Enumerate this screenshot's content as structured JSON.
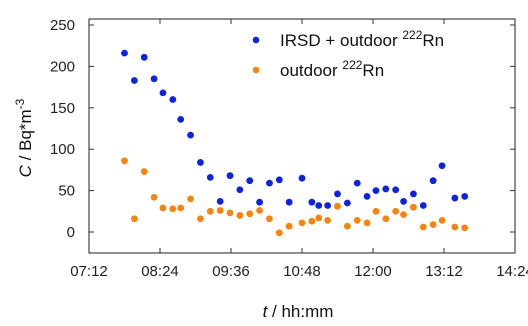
{
  "chart_data": {
    "type": "scatter",
    "xlabel": {
      "var": "t",
      "unit": " / hh:mm"
    },
    "ylabel": {
      "var": "C",
      "unit": " / Bq*m",
      "sup": "-3"
    },
    "x_ticks": [
      "07:12",
      "08:24",
      "09:36",
      "10:48",
      "12:00",
      "13:12",
      "14:24"
    ],
    "xlim": [
      "07:12",
      "14:24"
    ],
    "ylim": [
      0,
      250
    ],
    "y_ticks": [
      "0",
      "50",
      "100",
      "150",
      "200",
      "250"
    ],
    "grid": false,
    "legend_position": "top-right",
    "series": [
      {
        "legend": {
          "pre": "IRSD + outdoor ",
          "sup": "222",
          "post": "Rn"
        },
        "color": "#0d23e0",
        "points": [
          [
            "07:48",
            216
          ],
          [
            "07:58",
            183
          ],
          [
            "08:08",
            211
          ],
          [
            "08:18",
            185
          ],
          [
            "08:27",
            168
          ],
          [
            "08:37",
            160
          ],
          [
            "08:45",
            136
          ],
          [
            "08:55",
            117
          ],
          [
            "09:05",
            84
          ],
          [
            "09:15",
            66
          ],
          [
            "09:25",
            37
          ],
          [
            "09:35",
            68
          ],
          [
            "09:45",
            51
          ],
          [
            "09:55",
            62
          ],
          [
            "10:05",
            36
          ],
          [
            "10:15",
            59
          ],
          [
            "10:25",
            63
          ],
          [
            "10:35",
            36
          ],
          [
            "10:48",
            65
          ],
          [
            "10:58",
            36
          ],
          [
            "11:05",
            32
          ],
          [
            "11:14",
            32
          ],
          [
            "11:24",
            46
          ],
          [
            "11:34",
            35
          ],
          [
            "11:44",
            59
          ],
          [
            "11:54",
            43
          ],
          [
            "12:03",
            50
          ],
          [
            "12:13",
            52
          ],
          [
            "12:23",
            51
          ],
          [
            "12:31",
            37
          ],
          [
            "12:41",
            46
          ],
          [
            "12:51",
            32
          ],
          [
            "13:01",
            62
          ],
          [
            "13:10",
            80
          ],
          [
            "13:23",
            41
          ],
          [
            "13:33",
            43
          ]
        ]
      },
      {
        "legend": {
          "pre": "outdoor ",
          "sup": "222",
          "post": "Rn"
        },
        "color": "#f5850f",
        "points": [
          [
            "07:48",
            86
          ],
          [
            "07:58",
            16
          ],
          [
            "08:08",
            73
          ],
          [
            "08:18",
            42
          ],
          [
            "08:27",
            29
          ],
          [
            "08:37",
            28
          ],
          [
            "08:45",
            29
          ],
          [
            "08:55",
            40
          ],
          [
            "09:05",
            16
          ],
          [
            "09:15",
            25
          ],
          [
            "09:25",
            26
          ],
          [
            "09:35",
            23
          ],
          [
            "09:45",
            20
          ],
          [
            "09:55",
            22
          ],
          [
            "10:05",
            26
          ],
          [
            "10:15",
            16
          ],
          [
            "10:25",
            -1
          ],
          [
            "10:35",
            7
          ],
          [
            "10:48",
            11
          ],
          [
            "10:58",
            13
          ],
          [
            "11:05",
            17
          ],
          [
            "11:14",
            14
          ],
          [
            "11:24",
            31
          ],
          [
            "11:34",
            7
          ],
          [
            "11:44",
            14
          ],
          [
            "11:54",
            11
          ],
          [
            "12:03",
            25
          ],
          [
            "12:13",
            16
          ],
          [
            "12:23",
            25
          ],
          [
            "12:31",
            21
          ],
          [
            "12:41",
            30
          ],
          [
            "12:51",
            6
          ],
          [
            "13:01",
            9
          ],
          [
            "13:10",
            14
          ],
          [
            "13:23",
            6
          ],
          [
            "13:33",
            5
          ]
        ]
      }
    ]
  }
}
